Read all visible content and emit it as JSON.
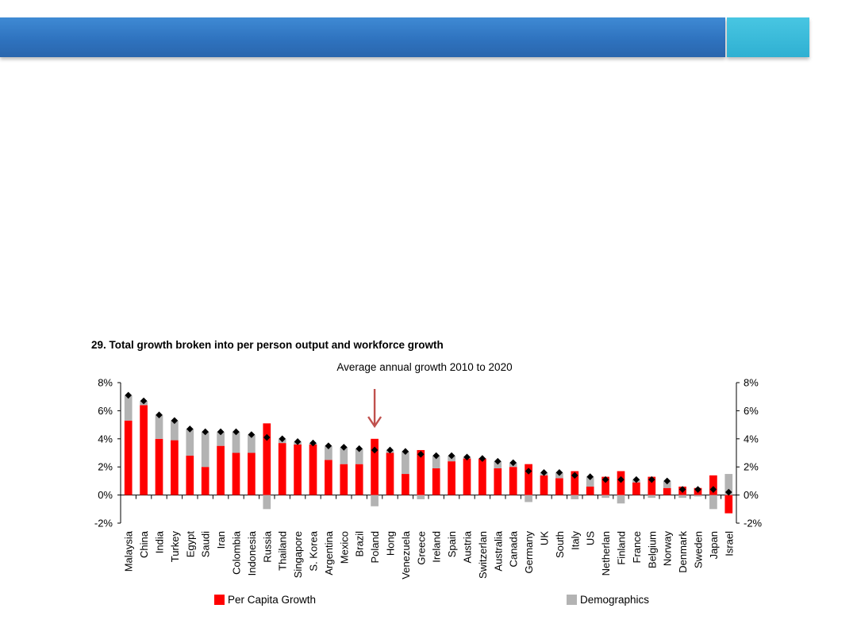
{
  "colors": {
    "header_bar": "#2f73bf",
    "header_accent": "#3ab8d8",
    "per_capita": "#ff0000",
    "demographics": "#b3b3b3",
    "total_marker": "#000000",
    "arrow": "#c0504d"
  },
  "chart_data": {
    "type": "bar",
    "title": "29. Total growth broken into per person output and workforce growth",
    "subtitle": "Average annual growth 2010 to 2020",
    "ylim": [
      -2,
      8
    ],
    "y_ticks": [
      "-2%",
      "0%",
      "2%",
      "4%",
      "6%",
      "8%"
    ],
    "y_tick_values": [
      -2,
      0,
      2,
      4,
      6,
      8
    ],
    "right_axis_ticks": [
      "-2%",
      "0%",
      "2%",
      "4%",
      "6%",
      "8%"
    ],
    "stacked": true,
    "highlighted_category": "Poland",
    "legend": [
      "Per Capita Growth",
      "Demographics"
    ],
    "legend_placement": "bottom",
    "categories": [
      "Malaysia",
      "China",
      "India",
      "Turkey",
      "Egypt",
      "Saudi",
      "Iran",
      "Colombia",
      "Indonesia",
      "Russia",
      "Thailand",
      "Singapore",
      "S. Korea",
      "Argentina",
      "Mexico",
      "Brazil",
      "Poland",
      "Hong",
      "Venezuela",
      "Greece",
      "Ireland",
      "Spain",
      "Austria",
      "Switzerlan",
      "Australia",
      "Canada",
      "Germany",
      "UK",
      "South",
      "Italy",
      "US",
      "Netherlan",
      "Finland",
      "France",
      "Belgium",
      "Norway",
      "Denmark",
      "Sweden",
      "Japan",
      "Israel"
    ],
    "series": [
      {
        "name": "Per Capita Growth",
        "values": [
          5.3,
          6.4,
          4.0,
          3.9,
          2.8,
          2.0,
          3.5,
          3.0,
          3.0,
          5.1,
          3.7,
          3.6,
          3.6,
          2.5,
          2.2,
          2.2,
          4.0,
          3.0,
          1.5,
          3.2,
          1.9,
          2.4,
          2.6,
          2.6,
          1.9,
          2.0,
          2.2,
          1.4,
          1.2,
          1.7,
          0.6,
          1.3,
          1.7,
          0.9,
          1.3,
          0.5,
          0.6,
          0.5,
          1.4,
          -1.3
        ]
      },
      {
        "name": "Demographics",
        "values": [
          1.8,
          0.3,
          1.7,
          1.4,
          1.9,
          2.5,
          1.0,
          1.5,
          1.3,
          -1.0,
          0.3,
          0.2,
          0.1,
          1.0,
          1.2,
          1.1,
          -0.8,
          0.2,
          1.6,
          -0.3,
          0.9,
          0.4,
          0.1,
          0.0,
          0.5,
          0.3,
          -0.5,
          0.2,
          0.4,
          -0.3,
          0.7,
          -0.2,
          -0.6,
          0.2,
          -0.2,
          0.5,
          -0.2,
          -0.1,
          -1.0,
          1.5
        ]
      }
    ],
    "total_markers": [
      7.1,
      6.7,
      5.7,
      5.3,
      4.7,
      4.5,
      4.5,
      4.5,
      4.3,
      4.1,
      4.0,
      3.8,
      3.7,
      3.5,
      3.4,
      3.3,
      3.2,
      3.2,
      3.1,
      2.9,
      2.8,
      2.8,
      2.7,
      2.6,
      2.4,
      2.3,
      1.7,
      1.6,
      1.6,
      1.4,
      1.3,
      1.1,
      1.1,
      1.1,
      1.1,
      1.0,
      0.4,
      0.4,
      0.4,
      0.2
    ]
  }
}
